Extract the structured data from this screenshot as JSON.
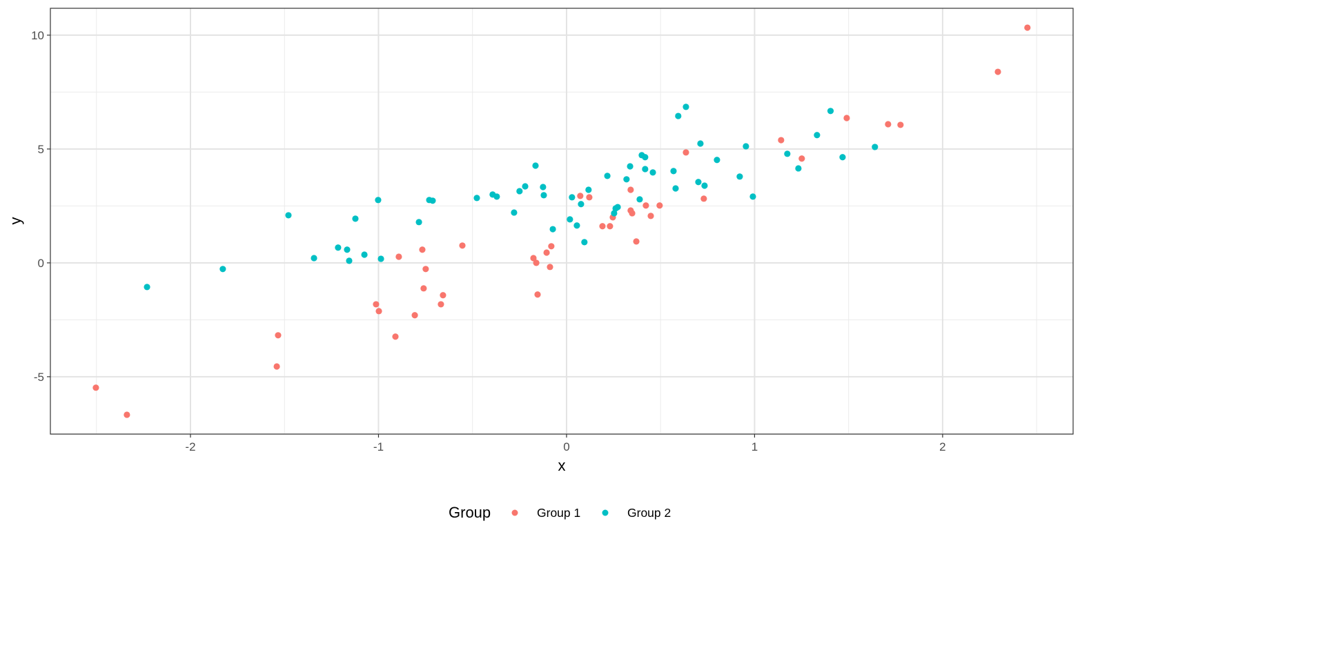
{
  "chart_data": {
    "type": "scatter",
    "title": "",
    "xlabel": "x",
    "ylabel": "y",
    "xlim": [
      -2.745,
      2.694
    ],
    "ylim": [
      -7.52,
      11.18
    ],
    "x_major_ticks": [
      -2,
      -1,
      0,
      1,
      2
    ],
    "x_tick_labels": [
      "-2",
      "-1",
      "0",
      "1",
      "2"
    ],
    "y_major_ticks": [
      -5,
      0,
      5,
      10
    ],
    "y_tick_labels": [
      "-5",
      "0",
      "5",
      "10"
    ],
    "grid": true,
    "legend": {
      "title": "Group",
      "placement": "bottom"
    },
    "series": [
      {
        "name": "Group 1",
        "color": "#F8766D",
        "points": [
          [
            -2.503,
            -5.48
          ],
          [
            -2.338,
            -6.67
          ],
          [
            -1.534,
            -3.18
          ],
          [
            -1.541,
            -4.55
          ],
          [
            -1.013,
            -1.82
          ],
          [
            -0.998,
            -2.12
          ],
          [
            -0.892,
            0.27
          ],
          [
            -0.91,
            -3.24
          ],
          [
            -0.807,
            -2.3
          ],
          [
            -0.767,
            0.58
          ],
          [
            -0.76,
            -1.12
          ],
          [
            -0.749,
            -0.27
          ],
          [
            -0.657,
            -1.42
          ],
          [
            -0.668,
            -1.82
          ],
          [
            -0.554,
            0.76
          ],
          [
            -0.176,
            0.21
          ],
          [
            -0.161,
            0.0
          ],
          [
            -0.154,
            -1.39
          ],
          [
            -0.106,
            0.45
          ],
          [
            -0.081,
            0.73
          ],
          [
            -0.088,
            -0.18
          ],
          [
            0.073,
            2.94
          ],
          [
            0.121,
            2.88
          ],
          [
            0.191,
            1.61
          ],
          [
            0.231,
            1.61
          ],
          [
            0.246,
            2.0
          ],
          [
            0.341,
            3.21
          ],
          [
            0.341,
            2.3
          ],
          [
            0.349,
            2.18
          ],
          [
            0.371,
            0.94
          ],
          [
            0.422,
            2.52
          ],
          [
            0.448,
            2.06
          ],
          [
            0.495,
            2.52
          ],
          [
            0.635,
            4.85
          ],
          [
            0.73,
            2.82
          ],
          [
            1.141,
            5.39
          ],
          [
            1.251,
            4.58
          ],
          [
            1.49,
            6.36
          ],
          [
            1.71,
            6.09
          ],
          [
            1.776,
            6.06
          ],
          [
            2.294,
            8.39
          ],
          [
            2.451,
            10.33
          ]
        ]
      },
      {
        "name": "Group 2",
        "color": "#00BFC4",
        "points": [
          [
            -2.231,
            -1.06
          ],
          [
            -1.828,
            -0.27
          ],
          [
            -1.479,
            2.09
          ],
          [
            -1.343,
            0.21
          ],
          [
            -1.215,
            0.67
          ],
          [
            -1.167,
            0.58
          ],
          [
            -1.156,
            0.09
          ],
          [
            -1.123,
            1.94
          ],
          [
            -1.075,
            0.36
          ],
          [
            -1.002,
            2.76
          ],
          [
            -0.987,
            0.18
          ],
          [
            -0.785,
            1.79
          ],
          [
            -0.73,
            2.76
          ],
          [
            -0.712,
            2.73
          ],
          [
            -0.477,
            2.85
          ],
          [
            -0.393,
            3.0
          ],
          [
            -0.371,
            2.91
          ],
          [
            -0.279,
            2.21
          ],
          [
            -0.25,
            3.15
          ],
          [
            -0.22,
            3.36
          ],
          [
            -0.165,
            4.27
          ],
          [
            -0.125,
            3.33
          ],
          [
            -0.121,
            2.97
          ],
          [
            -0.073,
            1.48
          ],
          [
            0.018,
            1.91
          ],
          [
            0.029,
            2.88
          ],
          [
            0.055,
            1.64
          ],
          [
            0.077,
            2.58
          ],
          [
            0.095,
            0.91
          ],
          [
            0.117,
            3.21
          ],
          [
            0.217,
            3.82
          ],
          [
            0.253,
            2.18
          ],
          [
            0.261,
            2.39
          ],
          [
            0.272,
            2.45
          ],
          [
            0.319,
            3.67
          ],
          [
            0.338,
            4.24
          ],
          [
            0.389,
            2.79
          ],
          [
            0.4,
            4.73
          ],
          [
            0.418,
            4.64
          ],
          [
            0.418,
            4.12
          ],
          [
            0.459,
            3.97
          ],
          [
            0.569,
            4.03
          ],
          [
            0.58,
            3.27
          ],
          [
            0.594,
            6.45
          ],
          [
            0.635,
            6.85
          ],
          [
            0.701,
            3.55
          ],
          [
            0.712,
            5.24
          ],
          [
            0.734,
            3.39
          ],
          [
            0.8,
            4.52
          ],
          [
            0.921,
            3.79
          ],
          [
            0.954,
            5.12
          ],
          [
            0.991,
            2.91
          ],
          [
            1.174,
            4.79
          ],
          [
            1.233,
            4.15
          ],
          [
            1.332,
            5.61
          ],
          [
            1.404,
            6.67
          ],
          [
            1.468,
            4.64
          ],
          [
            1.64,
            5.09
          ]
        ]
      }
    ]
  }
}
